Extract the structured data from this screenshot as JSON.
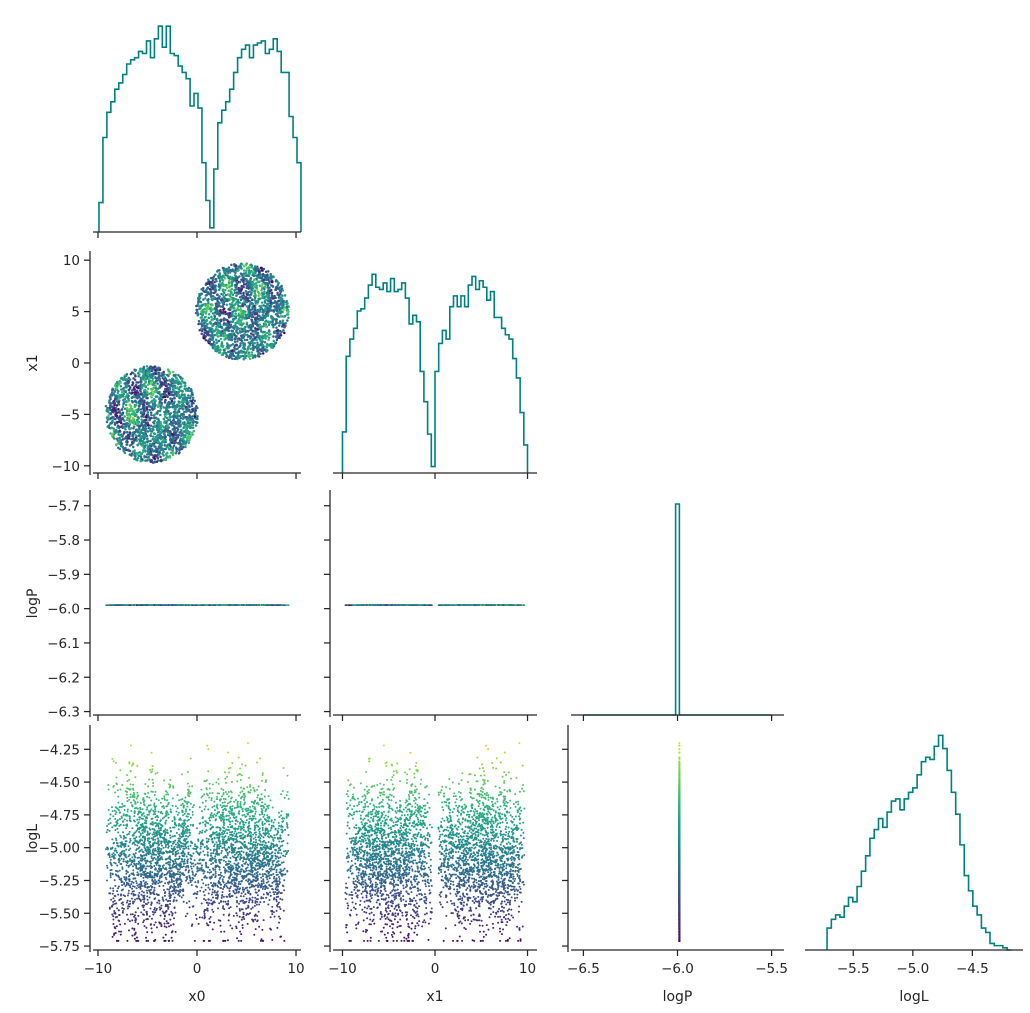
{
  "chart_data": {
    "type": "scatter",
    "layout": "corner-plot",
    "parameters": [
      "x0",
      "x1",
      "logP",
      "logL"
    ],
    "axis_labels": {
      "x0": "x0",
      "x1": "x1",
      "logP": "logP",
      "logL": "logL"
    },
    "ranges": {
      "x0": [
        -10.2,
        10.2
      ],
      "x1": [
        -10.7,
        10.7
      ],
      "logP": [
        -6.31,
        -5.66
      ],
      "logL": [
        -5.78,
        -4.08
      ],
      "logP_hist_x": [
        -6.55,
        -5.45
      ],
      "logL_hist_x": [
        -5.88,
        -4.1
      ]
    },
    "ticks": {
      "x0": {
        "values": [
          -10,
          0,
          10
        ],
        "labels": [
          "−10",
          "0",
          "10"
        ]
      },
      "x1": {
        "values": [
          -10,
          -5,
          0,
          5,
          10
        ],
        "labels": [
          "−10",
          "−5",
          "0",
          "5",
          "10"
        ]
      },
      "x1_bottom": {
        "values": [
          -10,
          0,
          10
        ],
        "labels": [
          "−10",
          "0",
          "10"
        ]
      },
      "logP": {
        "values": [
          -5.7,
          -5.8,
          -5.9,
          -6.0,
          -6.1,
          -6.2,
          -6.3
        ],
        "labels": [
          "−5.7",
          "−5.8",
          "−5.9",
          "−6.0",
          "−6.1",
          "−6.2",
          "−6.3"
        ]
      },
      "logP_bottom": {
        "values": [
          -6.5,
          -6.0,
          -5.5
        ],
        "labels": [
          "−6.5",
          "−6.0",
          "−5.5"
        ]
      },
      "logL": {
        "values": [
          -4.25,
          -4.5,
          -4.75,
          -5.0,
          -5.25,
          -5.5,
          -5.75
        ],
        "labels": [
          "−4.25",
          "−4.50",
          "−4.75",
          "−5.00",
          "−5.25",
          "−5.50",
          "−5.75"
        ]
      },
      "logL_bottom": {
        "values": [
          -5.5,
          -5.0,
          -4.5
        ],
        "labels": [
          "−5.5",
          "−5.0",
          "−4.5"
        ]
      }
    },
    "logP_constant": -5.99,
    "colormap": "viridis",
    "color_by": "logL",
    "hist_color": "#008080",
    "histograms": {
      "x0": {
        "edges_start": -9.9,
        "bin_width": 0.4,
        "counts": [
          0.14,
          0.45,
          0.57,
          0.62,
          0.68,
          0.71,
          0.75,
          0.8,
          0.82,
          0.83,
          0.86,
          0.85,
          0.91,
          0.83,
          0.92,
          0.98,
          0.88,
          0.98,
          0.85,
          0.84,
          0.79,
          0.76,
          0.73,
          0.6,
          0.66,
          0.59,
          0.33,
          0.15,
          0.02,
          0.3,
          0.52,
          0.58,
          0.62,
          0.68,
          0.76,
          0.83,
          0.87,
          0.89,
          0.83,
          0.89,
          0.9,
          0.91,
          0.85,
          0.87,
          0.92,
          0.86,
          0.76,
          0.76,
          0.55,
          0.45,
          0.33
        ]
      },
      "x1": {
        "edges_start": -10.0,
        "bin_width": 0.4,
        "counts": [
          0.19,
          0.54,
          0.62,
          0.67,
          0.75,
          0.76,
          0.81,
          0.87,
          0.92,
          0.86,
          0.85,
          0.88,
          0.84,
          0.9,
          0.84,
          0.85,
          0.88,
          0.81,
          0.69,
          0.73,
          0.7,
          0.47,
          0.33,
          0.18,
          0.03,
          0.47,
          0.6,
          0.66,
          0.62,
          0.77,
          0.82,
          0.77,
          0.82,
          0.77,
          0.87,
          0.91,
          0.85,
          0.89,
          0.86,
          0.8,
          0.84,
          0.72,
          0.72,
          0.67,
          0.64,
          0.62,
          0.53,
          0.44,
          0.28,
          0.13
        ]
      },
      "logP": {
        "edges": [
          -6.5,
          -6.01,
          -5.99,
          -5.5
        ],
        "counts": [
          0,
          1,
          0
        ],
        "peak": -5.695
      },
      "logL": {
        "edges_start": -5.72,
        "bin_width": 0.036,
        "counts": [
          0.1,
          0.14,
          0.16,
          0.15,
          0.2,
          0.24,
          0.22,
          0.29,
          0.36,
          0.43,
          0.51,
          0.55,
          0.6,
          0.56,
          0.63,
          0.68,
          0.69,
          0.64,
          0.69,
          0.72,
          0.74,
          0.8,
          0.86,
          0.88,
          0.87,
          0.93,
          0.98,
          0.92,
          0.82,
          0.72,
          0.62,
          0.48,
          0.34,
          0.27,
          0.2,
          0.16,
          0.1,
          0.08,
          0.03,
          0.02,
          0.02,
          0.01,
          0.0
        ]
      }
    }
  }
}
